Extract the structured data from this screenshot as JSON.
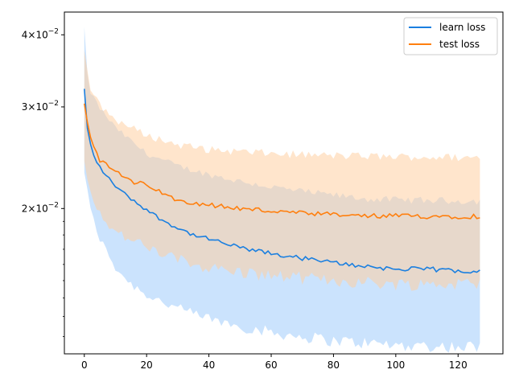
{
  "chart_data": {
    "type": "line",
    "title": "",
    "xlabel": "",
    "ylabel": "",
    "yscale": "log",
    "xlim": [
      -6.4,
      134.4
    ],
    "ylim": [
      0.0112,
      0.0438
    ],
    "x_ticks": [
      0,
      20,
      40,
      60,
      80,
      100,
      120
    ],
    "y_major_ticks": [
      {
        "value": 0.02,
        "base": "2",
        "exponent": "−2"
      },
      {
        "value": 0.03,
        "base": "3",
        "exponent": "−2"
      },
      {
        "value": 0.04,
        "base": "4",
        "exponent": "−2"
      }
    ],
    "grid": false,
    "legend_position": "top-right",
    "x_range": [
      0,
      127
    ],
    "series": [
      {
        "name": "learn loss",
        "color": "#1a7fe0",
        "band_color": "#a8d0fb",
        "knots": [
          [
            0,
            0.0322
          ],
          [
            1,
            0.0275
          ],
          [
            2,
            0.0258
          ],
          [
            3,
            0.0248
          ],
          [
            4,
            0.024
          ],
          [
            6,
            0.0232
          ],
          [
            8,
            0.0225
          ],
          [
            10,
            0.0219
          ],
          [
            12,
            0.0214
          ],
          [
            15,
            0.0208
          ],
          [
            20,
            0.0199
          ],
          [
            25,
            0.0191
          ],
          [
            30,
            0.0185
          ],
          [
            35,
            0.018
          ],
          [
            40,
            0.0177
          ],
          [
            45,
            0.0174
          ],
          [
            50,
            0.0171
          ],
          [
            60,
            0.0167
          ],
          [
            70,
            0.0164
          ],
          [
            80,
            0.0161
          ],
          [
            90,
            0.0159
          ],
          [
            100,
            0.0157
          ],
          [
            110,
            0.0157
          ],
          [
            120,
            0.0156
          ],
          [
            127,
            0.0156
          ]
        ],
        "lower_knots": [
          [
            0,
            0.0232
          ],
          [
            2,
            0.0198
          ],
          [
            5,
            0.0177
          ],
          [
            10,
            0.0158
          ],
          [
            15,
            0.0148
          ],
          [
            20,
            0.0142
          ],
          [
            30,
            0.0134
          ],
          [
            40,
            0.0129
          ],
          [
            50,
            0.0125
          ],
          [
            60,
            0.0122
          ],
          [
            70,
            0.012
          ],
          [
            80,
            0.0118
          ],
          [
            90,
            0.0117
          ],
          [
            100,
            0.0116
          ],
          [
            127,
            0.0115
          ]
        ],
        "upper_knots": [
          [
            0,
            0.0412
          ],
          [
            1,
            0.034
          ],
          [
            2,
            0.0318
          ],
          [
            5,
            0.0298
          ],
          [
            10,
            0.0276
          ],
          [
            15,
            0.0262
          ],
          [
            20,
            0.0249
          ],
          [
            30,
            0.0237
          ],
          [
            40,
            0.0229
          ],
          [
            50,
            0.0223
          ],
          [
            60,
            0.0218
          ],
          [
            70,
            0.0214
          ],
          [
            80,
            0.0211
          ],
          [
            90,
            0.0208
          ],
          [
            100,
            0.0207
          ],
          [
            127,
            0.0206
          ]
        ],
        "noise_amplitude": 0.0003
      },
      {
        "name": "test loss",
        "color": "#ff7f0e",
        "band_color": "#ffcfa3",
        "knots": [
          [
            0,
            0.0305
          ],
          [
            1,
            0.0283
          ],
          [
            2,
            0.0266
          ],
          [
            3,
            0.0258
          ],
          [
            5,
            0.0242
          ],
          [
            8,
            0.0236
          ],
          [
            12,
            0.0228
          ],
          [
            16,
            0.0221
          ],
          [
            20,
            0.0221
          ],
          [
            25,
            0.0212
          ],
          [
            30,
            0.0207
          ],
          [
            40,
            0.0203
          ],
          [
            50,
            0.02
          ],
          [
            60,
            0.0198
          ],
          [
            70,
            0.0196
          ],
          [
            80,
            0.0195
          ],
          [
            90,
            0.0194
          ],
          [
            100,
            0.0194
          ],
          [
            110,
            0.0194
          ],
          [
            127,
            0.0194
          ]
        ],
        "lower_knots": [
          [
            0,
            0.0242
          ],
          [
            2,
            0.0215
          ],
          [
            5,
            0.0196
          ],
          [
            10,
            0.0182
          ],
          [
            20,
            0.0171
          ],
          [
            30,
            0.0163
          ],
          [
            40,
            0.0158
          ],
          [
            50,
            0.0155
          ],
          [
            60,
            0.0153
          ],
          [
            80,
            0.015
          ],
          [
            100,
            0.0148
          ],
          [
            127,
            0.0148
          ]
        ],
        "upper_knots": [
          [
            0,
            0.0378
          ],
          [
            1,
            0.0345
          ],
          [
            2,
            0.0322
          ],
          [
            5,
            0.0302
          ],
          [
            10,
            0.0285
          ],
          [
            20,
            0.0268
          ],
          [
            30,
            0.0258
          ],
          [
            40,
            0.0253
          ],
          [
            50,
            0.0251
          ],
          [
            60,
            0.0249
          ],
          [
            80,
            0.0247
          ],
          [
            100,
            0.0246
          ],
          [
            127,
            0.0245
          ]
        ],
        "noise_amplitude": 0.0004
      }
    ]
  }
}
